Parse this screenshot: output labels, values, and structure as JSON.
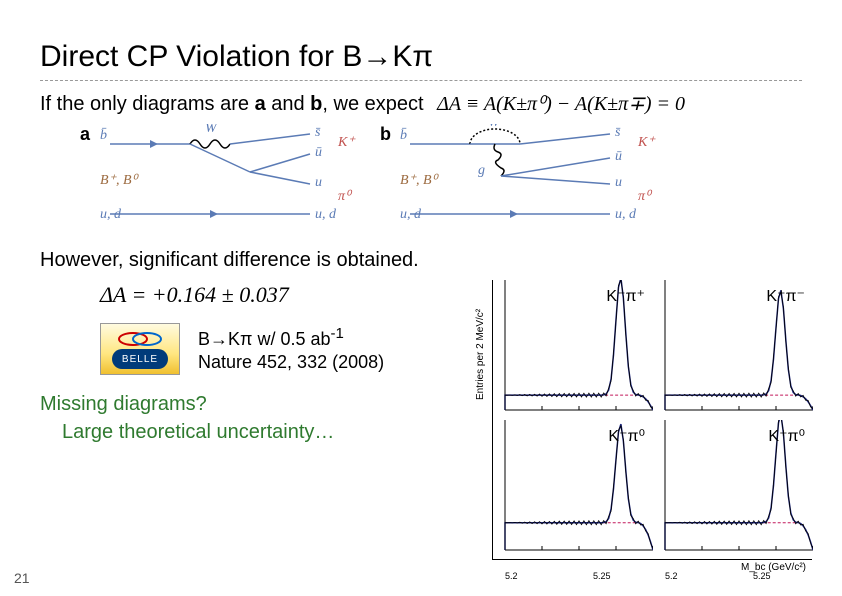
{
  "slide_number": "21",
  "title_prefix": "Direct CP Violation for B",
  "title_arrow": "→",
  "title_suffix": "Kπ",
  "line1_prefix": "If the only diagrams are ",
  "line1_a": "a",
  "line1_mid": " and ",
  "line1_b": "b",
  "line1_suffix": ", we expect",
  "formula_delta_def": "ΔA ≡ A(K±π⁰) − A(K±π∓) = 0",
  "diagram_a_label": "a",
  "diagram_b_label": "b",
  "diag": {
    "top_b": "b̄",
    "W": "W",
    "s": "s̄",
    "u": "ū",
    "Kplus": "K⁺",
    "pi0": "π⁰",
    "u_lower": "u",
    "d_lower": "u, d",
    "bmeson": "B⁺, B⁰",
    "g": "g"
  },
  "line2": "However, significant difference is obtained.",
  "delta_result": "ΔA = +0.164 ± 0.037",
  "belle_name": "BELLE",
  "ref_line1_prefix": "B",
  "ref_line1_arrow": "→",
  "ref_line1_kpi": "Kπ w/ 0.5 ab",
  "ref_line1_exp": "-1",
  "ref_line2": "Nature 452, 332 (2008)",
  "missing_l1": "Missing diagrams?",
  "missing_l2": "Large theoretical uncertainty…",
  "plots": {
    "ylab": "Entries per 2 MeV/c²",
    "xlab": "M_bc (GeV/c²)",
    "xticks": [
      "5.2",
      "5.25",
      "5.2",
      "5.25"
    ],
    "panels": [
      {
        "label": "K⁻π⁺",
        "peak_x": 0.78,
        "peak_h": 0.95,
        "bg": 0.12,
        "color_line": "#1a237e",
        "color_fit": "#c2185b"
      },
      {
        "label": "K⁺π⁻",
        "peak_x": 0.78,
        "peak_h": 0.85,
        "bg": 0.12,
        "color_line": "#1a237e",
        "color_fit": "#c2185b"
      },
      {
        "label": "K⁻π⁰",
        "peak_x": 0.78,
        "peak_h": 0.8,
        "bg": 0.22,
        "color_line": "#1a237e",
        "color_fit": "#c2185b"
      },
      {
        "label": "K⁺π⁰",
        "peak_x": 0.78,
        "peak_h": 0.88,
        "bg": 0.22,
        "color_line": "#1a237e",
        "color_fit": "#c2185b"
      }
    ]
  },
  "colors": {
    "title": "#000000",
    "dash": "#999999",
    "quark": "#5b7bb5",
    "meson": "#9c6a3f",
    "green": "#2f7a2f"
  }
}
